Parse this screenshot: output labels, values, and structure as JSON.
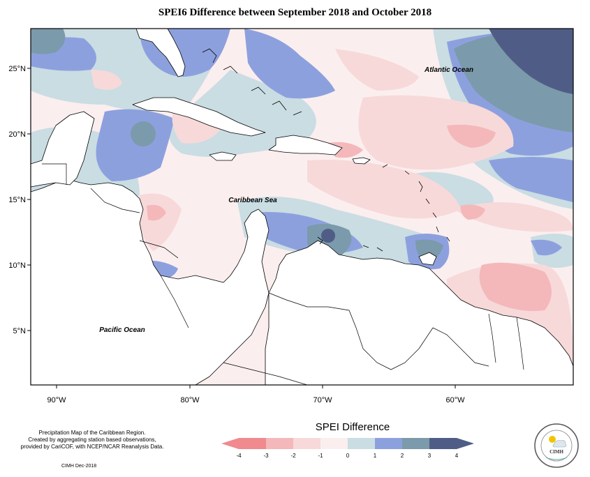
{
  "title": "SPEI6 Difference between September 2018 and October 2018",
  "axes": {
    "x_ticks": [
      "90°W",
      "80°W",
      "70°W",
      "60°W"
    ],
    "y_ticks": [
      "25°N",
      "20°N",
      "15°N",
      "10°N",
      "5°N"
    ]
  },
  "map_labels": {
    "atlantic": "Atlantic Ocean",
    "caribbean": "Caribbean Sea",
    "pacific": "Pacific Ocean"
  },
  "legend": {
    "title": "SPEI Difference",
    "ticks": [
      "-4",
      "-3",
      "-2",
      "-1",
      "0",
      "1",
      "2",
      "3",
      "4"
    ],
    "colors": [
      "#f08a8f",
      "#f4b8ba",
      "#f7d9da",
      "#fbeeee",
      "#c9dde3",
      "#8da0de",
      "#7b9aab",
      "#4f5d86"
    ]
  },
  "credits": {
    "line1": "Precipitation Map of the Caribbean Region.",
    "line2": "Created by aggregating station based observations,",
    "line3": "provided by CariCOF, with NCEP/NCAR Reanalysis Data.",
    "date": "CIMH Dec-2018"
  },
  "logo": {
    "name": "CIMH"
  }
}
